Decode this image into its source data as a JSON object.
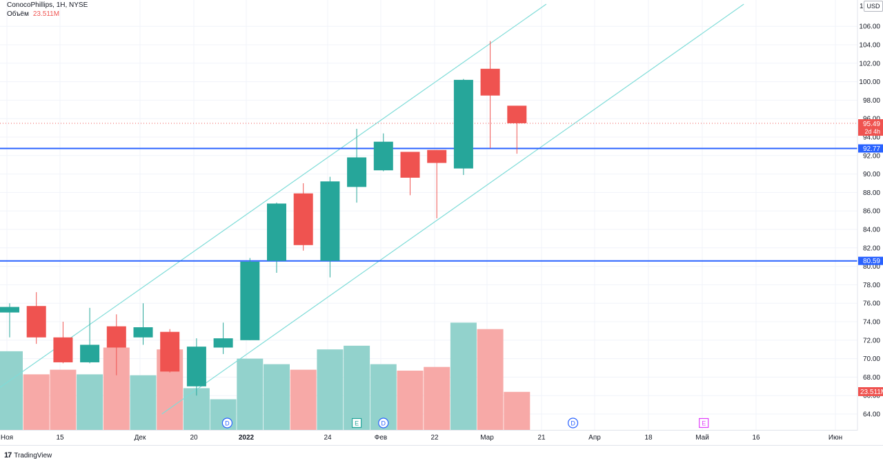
{
  "header": {
    "symbol_line": "ConocoPhillips, 1H, NYSE",
    "volume_label": "Объём",
    "volume_value": "23.511M"
  },
  "brand": {
    "name": "TradingView",
    "logo": "17"
  },
  "currency": "USD",
  "colors": {
    "up": "#26a69a",
    "down": "#ef5350",
    "up_volume": "#92d2cc",
    "down_volume": "#f7a9a7",
    "hline": "#2962ff",
    "channel": "#7fdcd8",
    "grid": "#f0f3fa"
  },
  "chart_data": {
    "type": "candlestick",
    "y_axis": {
      "min": 62,
      "max": 108,
      "side": "right",
      "ticks": [
        "64.00",
        "66.00",
        "68.00",
        "70.00",
        "72.00",
        "74.00",
        "76.00",
        "78.00",
        "80.00",
        "82.00",
        "84.00",
        "86.00",
        "88.00",
        "90.00",
        "92.00",
        "94.00",
        "96.00",
        "98.00",
        "100.00",
        "102.00",
        "104.00",
        "106.00"
      ],
      "top_label_partial": "1("
    },
    "x_axis": {
      "labels": [
        "Ноя",
        "15",
        "Дек",
        "20",
        "2022",
        "24",
        "Фев",
        "22",
        "Мар",
        "21",
        "Апр",
        "18",
        "Май",
        "16",
        "Июн"
      ],
      "bold": [
        "2022"
      ]
    },
    "candles": [
      {
        "o": 75.0,
        "h": 76.0,
        "l": 72.3,
        "c": 75.6
      },
      {
        "o": 75.7,
        "h": 77.2,
        "l": 71.6,
        "c": 72.3
      },
      {
        "o": 72.3,
        "h": 74.0,
        "l": 69.5,
        "c": 69.6
      },
      {
        "o": 69.6,
        "h": 75.5,
        "l": 69.5,
        "c": 71.5
      },
      {
        "o": 73.5,
        "h": 74.8,
        "l": 68.2,
        "c": 71.2
      },
      {
        "o": 72.3,
        "h": 76.0,
        "l": 71.5,
        "c": 73.4
      },
      {
        "o": 72.9,
        "h": 73.2,
        "l": 68.5,
        "c": 68.6
      },
      {
        "o": 67.0,
        "h": 72.2,
        "l": 66.0,
        "c": 71.3
      },
      {
        "o": 71.2,
        "h": 73.9,
        "l": 70.5,
        "c": 72.2
      },
      {
        "o": 72.0,
        "h": 80.9,
        "l": 72.0,
        "c": 80.5
      },
      {
        "o": 80.6,
        "h": 86.9,
        "l": 79.3,
        "c": 86.8
      },
      {
        "o": 87.9,
        "h": 89.0,
        "l": 81.7,
        "c": 82.3
      },
      {
        "o": 80.6,
        "h": 89.7,
        "l": 78.8,
        "c": 89.2
      },
      {
        "o": 88.6,
        "h": 94.9,
        "l": 86.9,
        "c": 91.8
      },
      {
        "o": 90.4,
        "h": 94.4,
        "l": 90.3,
        "c": 93.5
      },
      {
        "o": 92.4,
        "h": 92.4,
        "l": 87.7,
        "c": 89.6
      },
      {
        "o": 92.6,
        "h": 92.6,
        "l": 85.2,
        "c": 91.2
      },
      {
        "o": 90.6,
        "h": 100.3,
        "l": 89.9,
        "c": 100.2
      },
      {
        "o": 101.4,
        "h": 104.4,
        "l": 92.8,
        "c": 98.5
      },
      {
        "o": 97.4,
        "h": 97.4,
        "l": 92.2,
        "c": 95.5
      }
    ],
    "volume": [
      {
        "v": 70.8,
        "dir": "up"
      },
      {
        "v": 68.3,
        "dir": "down"
      },
      {
        "v": 68.8,
        "dir": "down"
      },
      {
        "v": 68.3,
        "dir": "up"
      },
      {
        "v": 71.2,
        "dir": "down"
      },
      {
        "v": 68.2,
        "dir": "up"
      },
      {
        "v": 71.0,
        "dir": "down"
      },
      {
        "v": 66.8,
        "dir": "up"
      },
      {
        "v": 65.6,
        "dir": "up"
      },
      {
        "v": 70.0,
        "dir": "up"
      },
      {
        "v": 69.4,
        "dir": "up"
      },
      {
        "v": 68.8,
        "dir": "down"
      },
      {
        "v": 71.0,
        "dir": "up"
      },
      {
        "v": 71.4,
        "dir": "up"
      },
      {
        "v": 69.4,
        "dir": "up"
      },
      {
        "v": 68.7,
        "dir": "down"
      },
      {
        "v": 69.1,
        "dir": "down"
      },
      {
        "v": 73.9,
        "dir": "up"
      },
      {
        "v": 73.2,
        "dir": "down"
      },
      {
        "v": 66.4,
        "dir": "down"
      }
    ],
    "horizontal_lines": [
      {
        "value": 92.77,
        "label": "92.77"
      },
      {
        "value": 80.59,
        "label": "80.59"
      }
    ],
    "current_price": {
      "value": 95.49,
      "label": "95.49",
      "countdown": "2d 4h"
    },
    "volume_badge": "23.511M",
    "channel_lines": [
      {
        "x1": -0.5,
        "y1": 66.6,
        "x2": 20.1,
        "y2": 108.4
      },
      {
        "x1": 5.7,
        "y1": 64.0,
        "x2": 27.5,
        "y2": 108.4
      }
    ],
    "event_markers": [
      {
        "label": "D",
        "x": 8.15,
        "color": "#2962ff"
      },
      {
        "label": "E",
        "x": 13.0,
        "color": "#26a69a"
      },
      {
        "label": "D",
        "x": 14.0,
        "color": "#2962ff"
      },
      {
        "label": "D",
        "x": 21.1,
        "color": "#2962ff"
      },
      {
        "label": "E",
        "x": 26.0,
        "color": "#e040fb"
      }
    ]
  }
}
